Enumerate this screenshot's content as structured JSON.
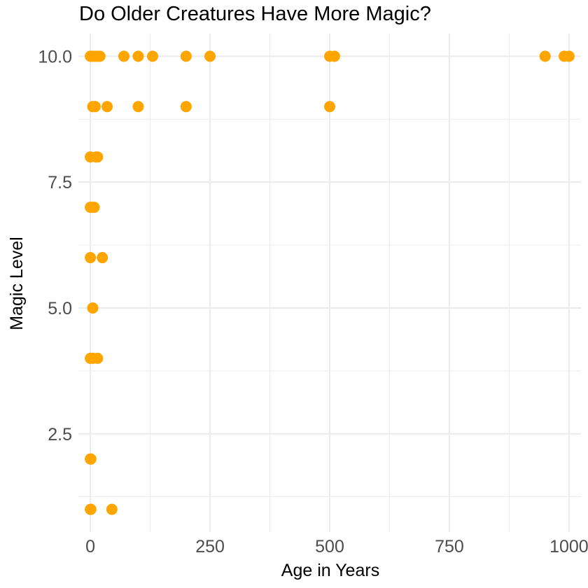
{
  "chart_data": {
    "type": "scatter",
    "title": "Do Older Creatures Have More Magic?",
    "xlabel": "Age in Years",
    "ylabel": "Magic Level",
    "xlim": [
      -25,
      1025
    ],
    "ylim": [
      0.55,
      10.45
    ],
    "x_ticks": [
      0,
      250,
      500,
      750,
      1000
    ],
    "x_tick_labels": [
      "0",
      "250",
      "500",
      "750",
      "1000"
    ],
    "y_ticks": [
      2.5,
      5.0,
      7.5,
      10.0
    ],
    "y_tick_labels": [
      "2.5",
      "5.0",
      "7.5",
      "10.0"
    ],
    "grid": true,
    "legend": "none",
    "point_color": "#FFA500",
    "points": [
      {
        "x": 0,
        "y": 10
      },
      {
        "x": 5,
        "y": 10
      },
      {
        "x": 10,
        "y": 10
      },
      {
        "x": 15,
        "y": 10
      },
      {
        "x": 20,
        "y": 10
      },
      {
        "x": 70,
        "y": 10
      },
      {
        "x": 100,
        "y": 10
      },
      {
        "x": 130,
        "y": 10
      },
      {
        "x": 200,
        "y": 10
      },
      {
        "x": 250,
        "y": 10
      },
      {
        "x": 500,
        "y": 10
      },
      {
        "x": 510,
        "y": 10
      },
      {
        "x": 950,
        "y": 10
      },
      {
        "x": 990,
        "y": 10
      },
      {
        "x": 1000,
        "y": 10
      },
      {
        "x": 5,
        "y": 9
      },
      {
        "x": 10,
        "y": 9
      },
      {
        "x": 35,
        "y": 9
      },
      {
        "x": 100,
        "y": 9
      },
      {
        "x": 200,
        "y": 9
      },
      {
        "x": 500,
        "y": 9
      },
      {
        "x": 0,
        "y": 8
      },
      {
        "x": 12,
        "y": 8
      },
      {
        "x": 15,
        "y": 8
      },
      {
        "x": 0,
        "y": 7
      },
      {
        "x": 5,
        "y": 7
      },
      {
        "x": 8,
        "y": 7
      },
      {
        "x": 0,
        "y": 6
      },
      {
        "x": 25,
        "y": 6
      },
      {
        "x": 5,
        "y": 5
      },
      {
        "x": 0,
        "y": 4
      },
      {
        "x": 5,
        "y": 4
      },
      {
        "x": 15,
        "y": 4
      },
      {
        "x": 0,
        "y": 2
      },
      {
        "x": 1,
        "y": 2
      },
      {
        "x": 0,
        "y": 1
      },
      {
        "x": 1,
        "y": 1
      },
      {
        "x": 45,
        "y": 1
      }
    ]
  }
}
